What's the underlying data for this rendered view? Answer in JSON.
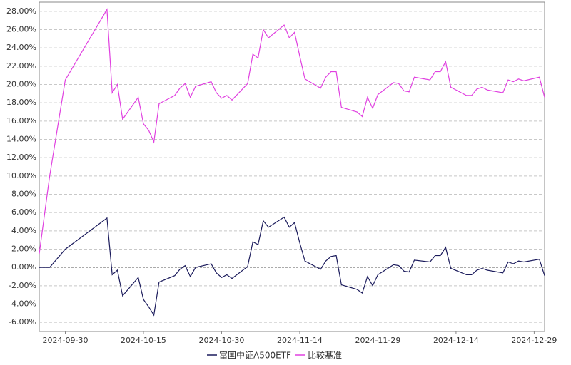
{
  "chart_data": {
    "type": "line",
    "x": [
      "2024-09-25",
      "2024-09-27",
      "2024-09-30",
      "2024-10-08",
      "2024-10-09",
      "2024-10-10",
      "2024-10-11",
      "2024-10-14",
      "2024-10-15",
      "2024-10-16",
      "2024-10-17",
      "2024-10-18",
      "2024-10-21",
      "2024-10-22",
      "2024-10-23",
      "2024-10-24",
      "2024-10-25",
      "2024-10-28",
      "2024-10-29",
      "2024-10-30",
      "2024-10-31",
      "2024-11-01",
      "2024-11-04",
      "2024-11-05",
      "2024-11-06",
      "2024-11-07",
      "2024-11-08",
      "2024-11-11",
      "2024-11-12",
      "2024-11-13",
      "2024-11-14",
      "2024-11-15",
      "2024-11-18",
      "2024-11-19",
      "2024-11-20",
      "2024-11-21",
      "2024-11-22",
      "2024-11-25",
      "2024-11-26",
      "2024-11-27",
      "2024-11-28",
      "2024-11-29",
      "2024-12-02",
      "2024-12-03",
      "2024-12-04",
      "2024-12-05",
      "2024-12-06",
      "2024-12-09",
      "2024-12-10",
      "2024-12-11",
      "2024-12-12",
      "2024-12-13",
      "2024-12-16",
      "2024-12-17",
      "2024-12-18",
      "2024-12-19",
      "2024-12-20",
      "2024-12-23",
      "2024-12-24",
      "2024-12-25",
      "2024-12-26",
      "2024-12-27",
      "2024-12-30",
      "2024-12-31"
    ],
    "series": [
      {
        "name": "富国中证A500ETF",
        "color": "#1b1b5c",
        "values": [
          0,
          0,
          2.0,
          5.4,
          -0.8,
          -0.3,
          -3.1,
          -1.1,
          -3.5,
          -4.3,
          -5.2,
          -1.6,
          -0.9,
          -0.2,
          0.2,
          -1.0,
          0.0,
          0.4,
          -0.6,
          -1.1,
          -0.8,
          -1.2,
          0.1,
          2.8,
          2.5,
          5.1,
          4.4,
          5.5,
          4.4,
          4.9,
          2.7,
          0.7,
          -0.2,
          0.7,
          1.2,
          1.3,
          -1.9,
          -2.4,
          -2.8,
          -1.0,
          -2.0,
          -0.8,
          0.3,
          0.2,
          -0.4,
          -0.5,
          0.8,
          0.6,
          1.3,
          1.3,
          2.2,
          -0.1,
          -0.8,
          -0.8,
          -0.3,
          -0.1,
          -0.3,
          -0.6,
          0.6,
          0.4,
          0.7,
          0.6,
          0.9,
          -0.9
        ]
      },
      {
        "name": "比较基准",
        "color": "#e040e0",
        "values": [
          1.5,
          10.0,
          20.5,
          28.2,
          19.1,
          20.0,
          16.2,
          18.6,
          15.7,
          15.0,
          13.7,
          17.9,
          18.8,
          19.6,
          20.1,
          18.6,
          19.8,
          20.3,
          19.1,
          18.5,
          18.8,
          18.3,
          20.1,
          23.3,
          22.9,
          26.0,
          25.1,
          26.5,
          25.1,
          25.7,
          23.1,
          20.6,
          19.6,
          20.8,
          21.4,
          21.4,
          17.5,
          17.0,
          16.5,
          18.6,
          17.4,
          18.9,
          20.2,
          20.1,
          19.3,
          19.2,
          20.8,
          20.5,
          21.4,
          21.4,
          22.5,
          19.7,
          18.8,
          18.8,
          19.5,
          19.7,
          19.4,
          19.1,
          20.5,
          20.3,
          20.6,
          20.4,
          20.8,
          18.6
        ]
      }
    ],
    "xlim": [
      "2024-09-25",
      "2024-12-31"
    ],
    "xticks": [
      "2024-09-30",
      "2024-10-15",
      "2024-10-30",
      "2024-11-14",
      "2024-11-29",
      "2024-12-14",
      "2024-12-29"
    ],
    "ylim": [
      -7,
      29
    ],
    "yticks": [
      {
        "value": -6,
        "label": "-6.00%"
      },
      {
        "value": -4,
        "label": "-4.00%"
      },
      {
        "value": -2,
        "label": "-2.00%"
      },
      {
        "value": 0,
        "label": "0.00%"
      },
      {
        "value": 2,
        "label": "2.00%"
      },
      {
        "value": 4,
        "label": "4.00%"
      },
      {
        "value": 6,
        "label": "6.00%"
      },
      {
        "value": 8,
        "label": "8.00%"
      },
      {
        "value": 10,
        "label": "10.00%"
      },
      {
        "value": 12,
        "label": "12.00%"
      },
      {
        "value": 14,
        "label": "14.00%"
      },
      {
        "value": 16,
        "label": "16.00%"
      },
      {
        "value": 18,
        "label": "18.00%"
      },
      {
        "value": 20,
        "label": "20.00%"
      },
      {
        "value": 22,
        "label": "22.00%"
      },
      {
        "value": 24,
        "label": "24.00%"
      },
      {
        "value": 26,
        "label": "26.00%"
      },
      {
        "value": 28,
        "label": "28.00%"
      }
    ],
    "grid": true
  }
}
